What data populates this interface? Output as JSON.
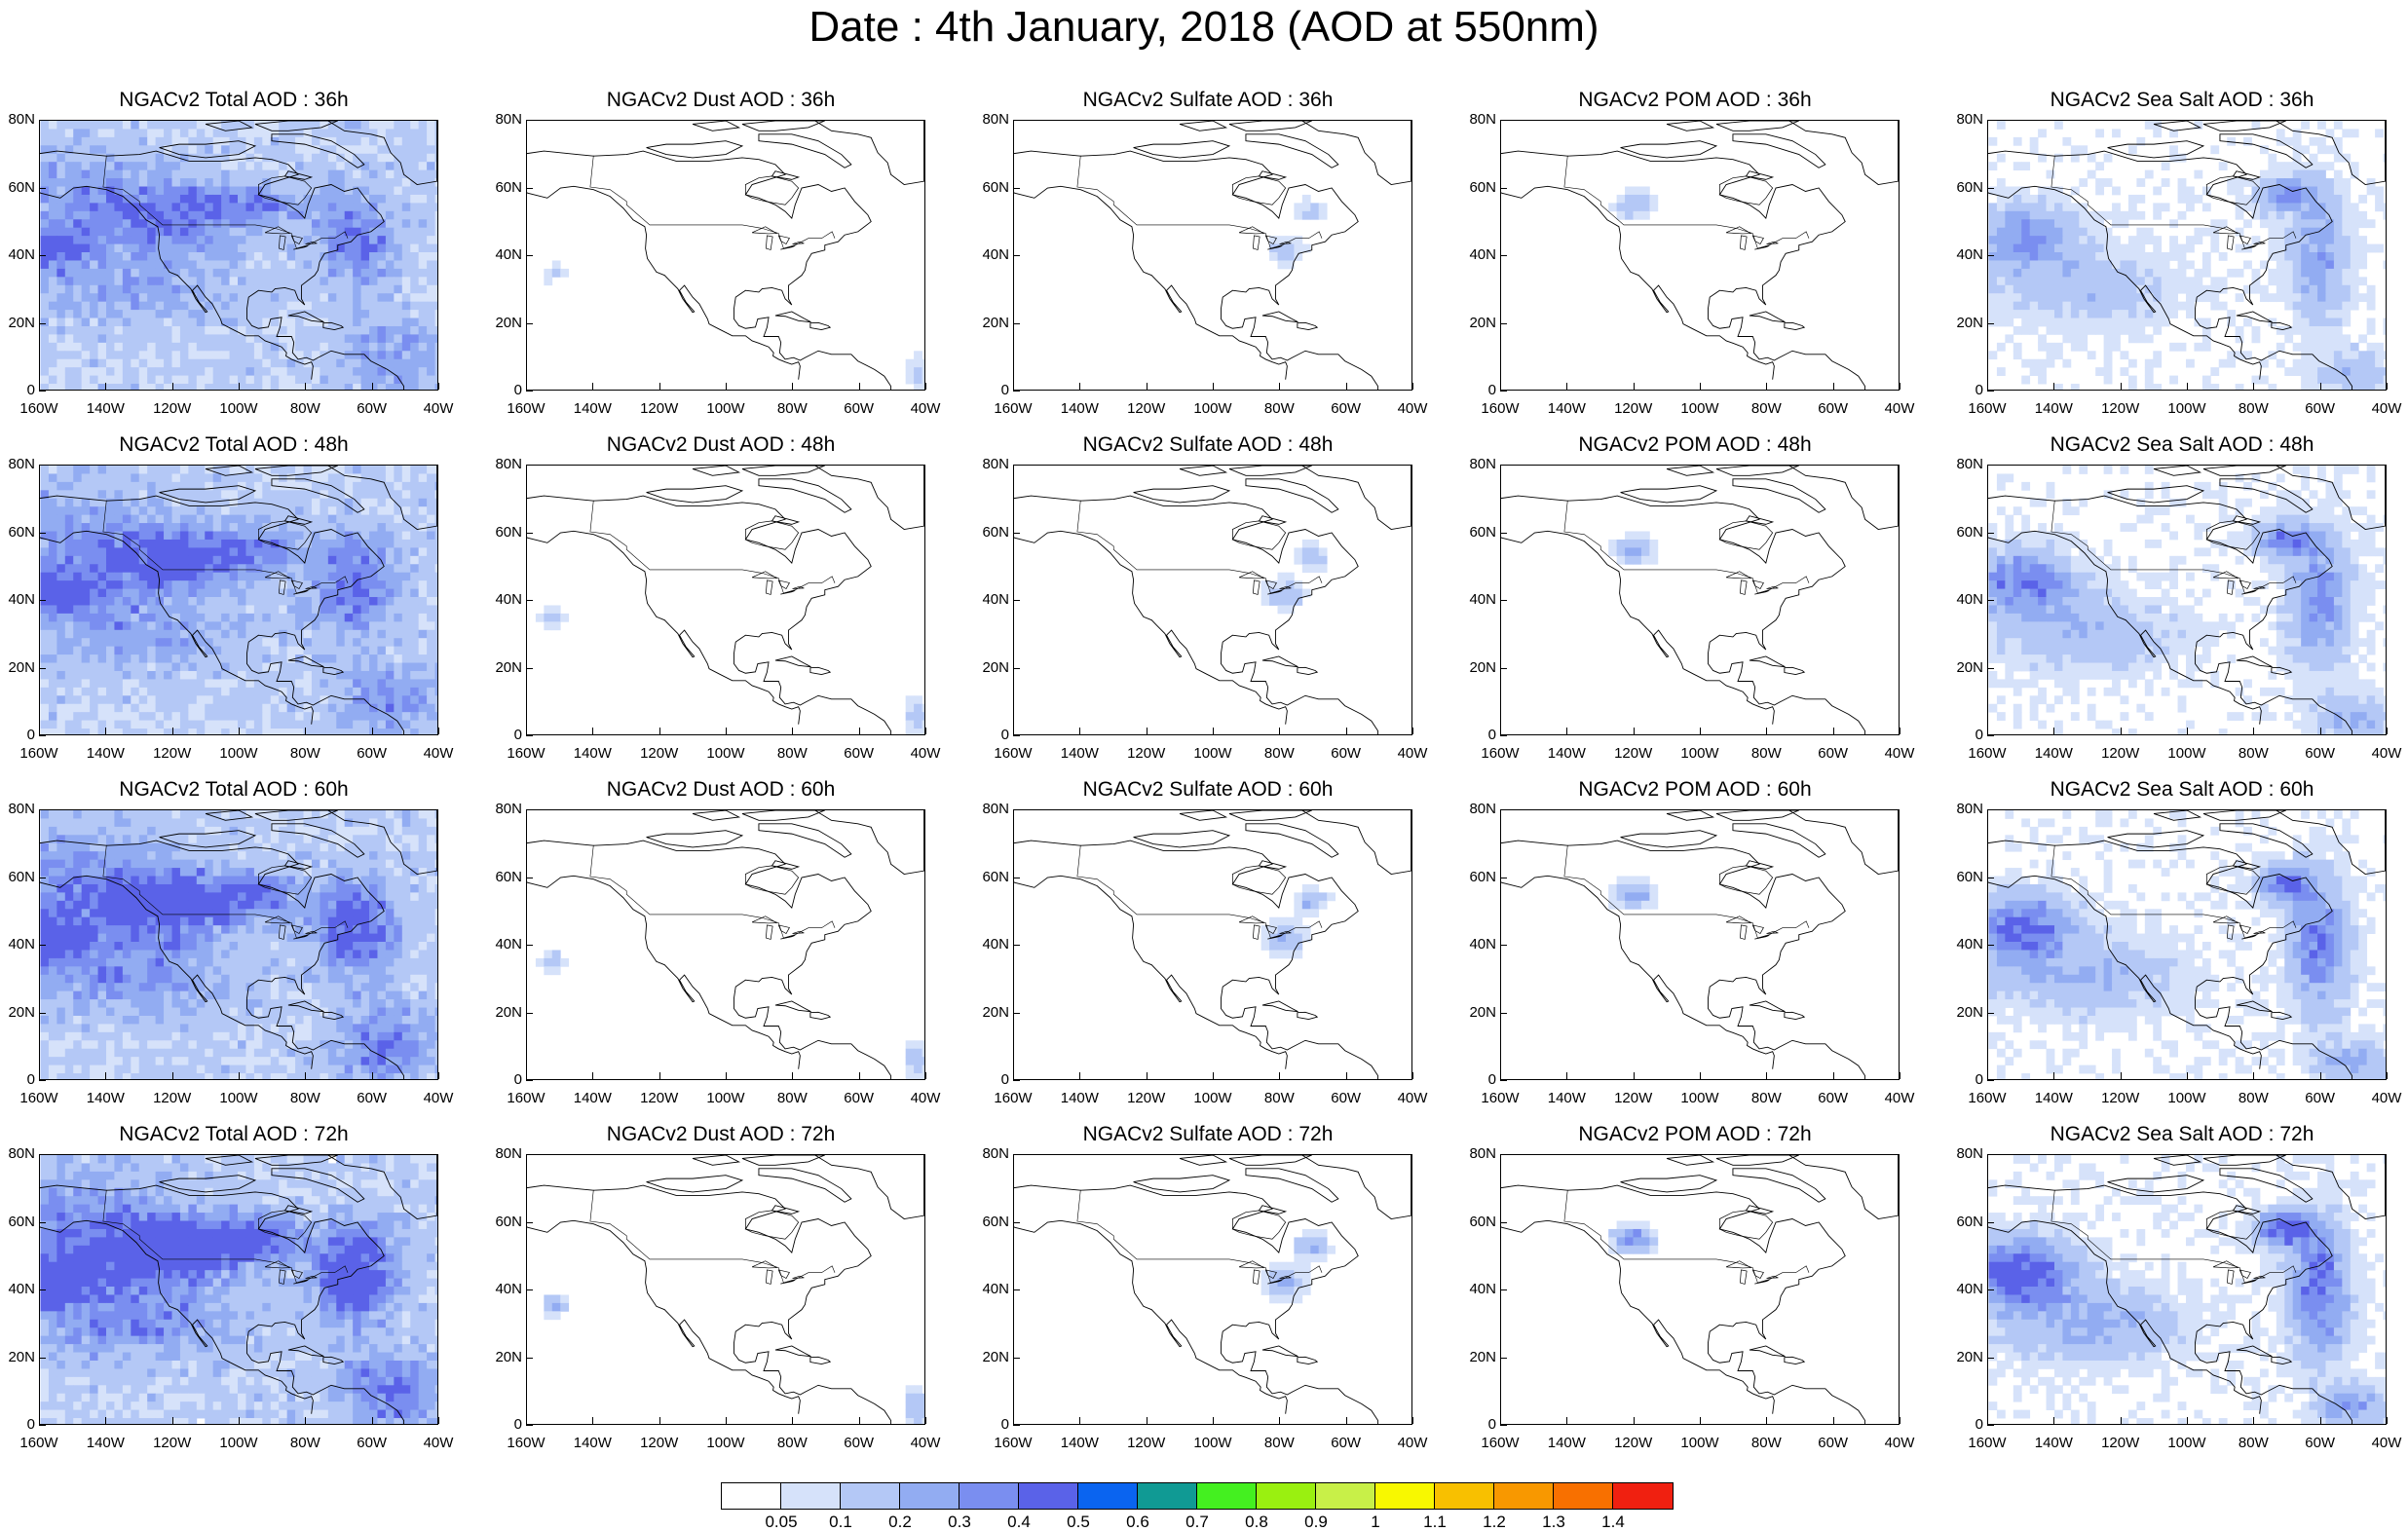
{
  "title": "Date : 4th January, 2018 (AOD at 550nm)",
  "axes": {
    "lat_labels": [
      "80N",
      "60N",
      "40N",
      "20N",
      "0"
    ],
    "lon_labels": [
      "160W",
      "140W",
      "120W",
      "100W",
      "80W",
      "60W",
      "40W"
    ]
  },
  "panels": [
    {
      "title": "NGACv2 Total AOD : 36h",
      "species": "total",
      "hour": 36
    },
    {
      "title": "NGACv2 Dust AOD : 36h",
      "species": "dust",
      "hour": 36
    },
    {
      "title": "NGACv2 Sulfate AOD : 36h",
      "species": "sulfate",
      "hour": 36
    },
    {
      "title": "NGACv2 POM AOD : 36h",
      "species": "pom",
      "hour": 36
    },
    {
      "title": "NGACv2 Sea Salt AOD : 36h",
      "species": "seasalt",
      "hour": 36
    },
    {
      "title": "NGACv2 Total AOD : 48h",
      "species": "total",
      "hour": 48
    },
    {
      "title": "NGACv2 Dust AOD : 48h",
      "species": "dust",
      "hour": 48
    },
    {
      "title": "NGACv2 Sulfate AOD : 48h",
      "species": "sulfate",
      "hour": 48
    },
    {
      "title": "NGACv2 POM AOD : 48h",
      "species": "pom",
      "hour": 48
    },
    {
      "title": "NGACv2 Sea Salt AOD : 48h",
      "species": "seasalt",
      "hour": 48
    },
    {
      "title": "NGACv2 Total AOD : 60h",
      "species": "total",
      "hour": 60
    },
    {
      "title": "NGACv2 Dust AOD : 60h",
      "species": "dust",
      "hour": 60
    },
    {
      "title": "NGACv2 Sulfate AOD : 60h",
      "species": "sulfate",
      "hour": 60
    },
    {
      "title": "NGACv2 POM AOD : 60h",
      "species": "pom",
      "hour": 60
    },
    {
      "title": "NGACv2 Sea Salt AOD : 60h",
      "species": "seasalt",
      "hour": 60
    },
    {
      "title": "NGACv2 Total AOD : 72h",
      "species": "total",
      "hour": 72
    },
    {
      "title": "NGACv2 Dust AOD : 72h",
      "species": "dust",
      "hour": 72
    },
    {
      "title": "NGACv2 Sulfate AOD : 72h",
      "species": "sulfate",
      "hour": 72
    },
    {
      "title": "NGACv2 POM AOD : 72h",
      "species": "pom",
      "hour": 72
    },
    {
      "title": "NGACv2 Sea Salt  AOD : 72h",
      "species": "seasalt",
      "hour": 72
    }
  ],
  "colorbar": {
    "labels": [
      "0.05",
      "0.1",
      "0.2",
      "0.3",
      "0.4",
      "0.5",
      "0.6",
      "0.7",
      "0.8",
      "0.9",
      "1",
      "1.1",
      "1.2",
      "1.3",
      "1.4"
    ],
    "colors": [
      "#ffffff",
      "#d6e2fa",
      "#b4c8f6",
      "#92acf2",
      "#7a8ef0",
      "#5a62e8",
      "#0a64f0",
      "#109a94",
      "#44f020",
      "#9af010",
      "#c8f048",
      "#f8f800",
      "#f8c000",
      "#f89800",
      "#f87000",
      "#f02010"
    ]
  }
}
